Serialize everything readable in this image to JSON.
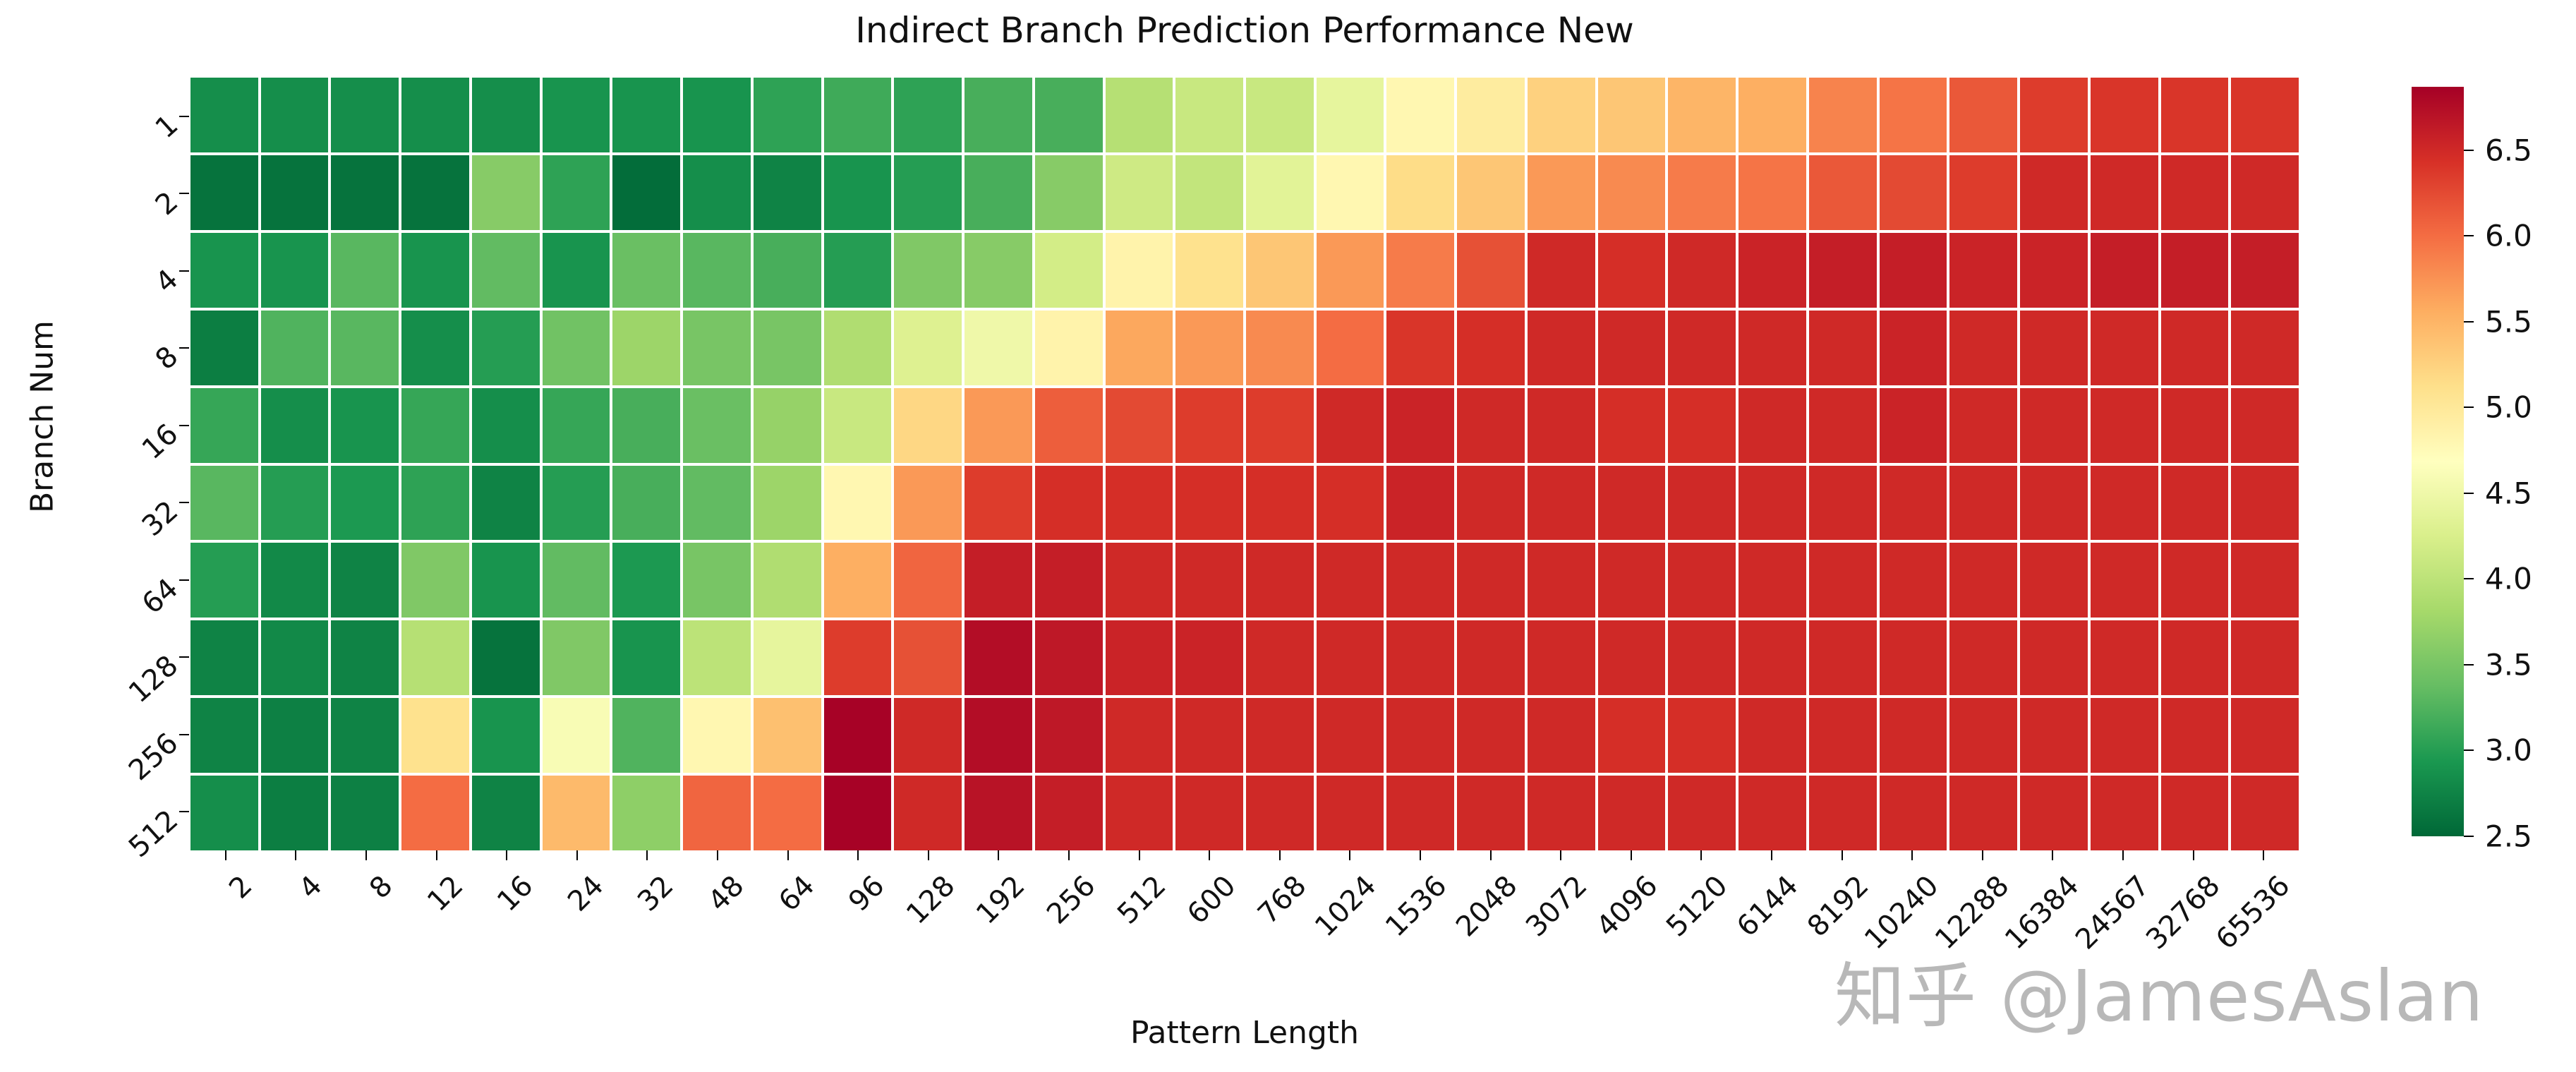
{
  "title": "Indirect Branch Prediction Performance New",
  "x_axis": {
    "label": "Pattern Length"
  },
  "y_axis": {
    "label": "Branch Num"
  },
  "colorbar": {
    "tick_labels": [
      "6.5",
      "6.0",
      "5.5",
      "5.0",
      "4.5",
      "4.0",
      "3.5",
      "3.0",
      "2.5"
    ],
    "tick_values": [
      6.5,
      6.0,
      5.5,
      5.0,
      4.5,
      4.0,
      3.5,
      3.0,
      2.5
    ]
  },
  "watermark": "知乎 @JamesAslan",
  "chart_data": {
    "type": "heatmap",
    "title": "Indirect Branch Prediction Performance New",
    "xlabel": "Pattern Length",
    "ylabel": "Branch Num",
    "colormap": "RdYlGn_r",
    "vmin": 2.5,
    "vmax": 6.87,
    "grid_line_color": "#ffffff",
    "x_categories": [
      "2",
      "4",
      "8",
      "12",
      "16",
      "24",
      "32",
      "48",
      "64",
      "96",
      "128",
      "192",
      "256",
      "512",
      "600",
      "768",
      "1024",
      "1536",
      "2048",
      "3072",
      "4096",
      "5120",
      "6144",
      "8192",
      "10240",
      "12288",
      "16384",
      "24567",
      "32768",
      "65536"
    ],
    "y_categories": [
      "1",
      "2",
      "4",
      "8",
      "16",
      "32",
      "64",
      "128",
      "256",
      "512"
    ],
    "values": [
      [
        2.85,
        2.85,
        2.85,
        2.85,
        2.85,
        2.9,
        2.9,
        2.9,
        3.05,
        3.15,
        3.05,
        3.2,
        3.2,
        3.95,
        4.1,
        4.1,
        4.4,
        4.8,
        4.95,
        5.25,
        5.35,
        5.5,
        5.55,
        5.85,
        5.95,
        6.15,
        6.35,
        6.4,
        6.4,
        6.4
      ],
      [
        2.6,
        2.6,
        2.6,
        2.6,
        3.6,
        3.05,
        2.55,
        2.85,
        2.75,
        2.9,
        3.0,
        3.2,
        3.6,
        4.15,
        4.05,
        4.35,
        4.8,
        5.15,
        5.35,
        5.7,
        5.8,
        5.9,
        5.95,
        6.15,
        6.25,
        6.35,
        6.5,
        6.5,
        6.5,
        6.5
      ],
      [
        2.9,
        2.9,
        3.3,
        2.9,
        3.35,
        2.9,
        3.4,
        3.3,
        3.2,
        3.0,
        3.55,
        3.6,
        4.2,
        4.85,
        5.1,
        5.35,
        5.7,
        5.9,
        6.2,
        6.5,
        6.45,
        6.5,
        6.55,
        6.6,
        6.6,
        6.55,
        6.55,
        6.6,
        6.6,
        6.6
      ],
      [
        2.7,
        3.25,
        3.3,
        2.85,
        3.0,
        3.45,
        3.75,
        3.5,
        3.5,
        3.9,
        4.3,
        4.5,
        4.85,
        5.6,
        5.7,
        5.8,
        6.0,
        6.4,
        6.45,
        6.5,
        6.5,
        6.5,
        6.5,
        6.5,
        6.55,
        6.5,
        6.5,
        6.5,
        6.5,
        6.5
      ],
      [
        3.1,
        2.85,
        2.9,
        3.1,
        2.85,
        3.1,
        3.2,
        3.4,
        3.7,
        4.1,
        5.2,
        5.7,
        6.1,
        6.25,
        6.35,
        6.35,
        6.5,
        6.55,
        6.5,
        6.5,
        6.45,
        6.45,
        6.5,
        6.5,
        6.55,
        6.5,
        6.5,
        6.5,
        6.5,
        6.5
      ],
      [
        3.3,
        3.0,
        2.95,
        3.05,
        2.75,
        3.0,
        3.2,
        3.35,
        3.75,
        4.8,
        5.7,
        6.35,
        6.45,
        6.45,
        6.45,
        6.45,
        6.45,
        6.55,
        6.5,
        6.5,
        6.5,
        6.5,
        6.5,
        6.5,
        6.5,
        6.5,
        6.5,
        6.5,
        6.5,
        6.5
      ],
      [
        3.0,
        2.8,
        2.75,
        3.55,
        2.9,
        3.35,
        2.95,
        3.5,
        3.9,
        5.55,
        6.05,
        6.6,
        6.6,
        6.5,
        6.5,
        6.5,
        6.5,
        6.5,
        6.5,
        6.5,
        6.5,
        6.5,
        6.5,
        6.5,
        6.5,
        6.5,
        6.5,
        6.5,
        6.5,
        6.5
      ],
      [
        2.75,
        2.8,
        2.75,
        3.95,
        2.6,
        3.55,
        2.9,
        4.0,
        4.4,
        6.35,
        6.2,
        6.75,
        6.65,
        6.55,
        6.55,
        6.5,
        6.5,
        6.5,
        6.5,
        6.5,
        6.5,
        6.5,
        6.5,
        6.5,
        6.5,
        6.5,
        6.5,
        6.5,
        6.5,
        6.5
      ],
      [
        2.75,
        2.72,
        2.75,
        5.1,
        2.9,
        4.6,
        3.25,
        4.8,
        5.4,
        6.85,
        6.5,
        6.75,
        6.65,
        6.5,
        6.5,
        6.5,
        6.5,
        6.5,
        6.5,
        6.5,
        6.45,
        6.45,
        6.5,
        6.5,
        6.5,
        6.5,
        6.5,
        6.5,
        6.5,
        6.5
      ],
      [
        2.85,
        2.7,
        2.72,
        6.0,
        2.75,
        5.45,
        3.65,
        6.05,
        6.0,
        6.85,
        6.5,
        6.7,
        6.6,
        6.5,
        6.5,
        6.5,
        6.5,
        6.5,
        6.5,
        6.5,
        6.5,
        6.5,
        6.5,
        6.5,
        6.5,
        6.5,
        6.5,
        6.5,
        6.5,
        6.5
      ]
    ],
    "colorbar_ticks": [
      2.5,
      3.0,
      3.5,
      4.0,
      4.5,
      5.0,
      5.5,
      6.0,
      6.5
    ],
    "legend_position": "right",
    "grid": false
  }
}
